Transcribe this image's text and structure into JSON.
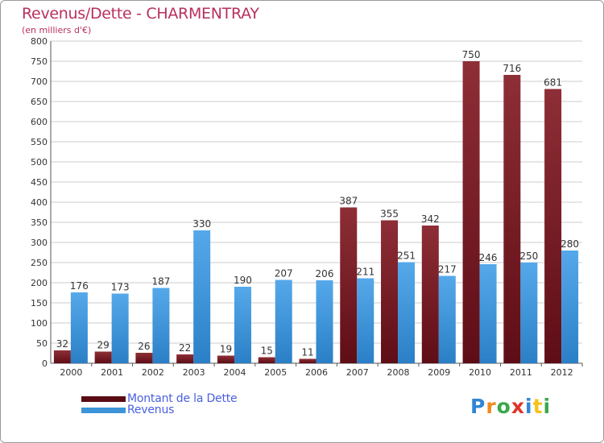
{
  "title": "Revenus/Dette - CHARMENTRAY",
  "subtitle": "(en milliers d'€)",
  "colors": {
    "debt": "#7a1d26",
    "revenue": "#3d94d8",
    "title": "#b8305e",
    "legend_text": "#4a5fe0",
    "grid": "#cccccc"
  },
  "chart_data": {
    "type": "bar",
    "title": "Revenus/Dette - CHARMENTRAY",
    "ylabel": "(en milliers d'€)",
    "xlabel": "",
    "categories": [
      "2000",
      "2001",
      "2002",
      "2003",
      "2004",
      "2005",
      "2006",
      "2007",
      "2008",
      "2009",
      "2010",
      "2011",
      "2012"
    ],
    "series": [
      {
        "name": "Montant de la Dette",
        "color": "#7a1d26",
        "values": [
          32,
          29,
          26,
          22,
          19,
          15,
          11,
          387,
          355,
          342,
          750,
          716,
          681
        ]
      },
      {
        "name": "Revenus",
        "color": "#3d94d8",
        "values": [
          176,
          173,
          187,
          330,
          190,
          207,
          206,
          211,
          251,
          217,
          246,
          250,
          280
        ]
      }
    ],
    "ylim": [
      0,
      800
    ],
    "yticks": [
      0,
      50,
      100,
      150,
      200,
      250,
      300,
      350,
      400,
      450,
      500,
      550,
      600,
      650,
      700,
      750,
      800
    ],
    "grid": true,
    "legend_position": "bottom-left"
  },
  "legend": [
    {
      "label": "Montant de la Dette",
      "color": "#7a1d26"
    },
    {
      "label": "Revenus",
      "color": "#3d94d8"
    }
  ],
  "logo": {
    "letters": [
      {
        "ch": "P",
        "color": "#2f86d4"
      },
      {
        "ch": "r",
        "color": "#f08a1c"
      },
      {
        "ch": "o",
        "color": "#3aa84a"
      },
      {
        "ch": "x",
        "color": "#e0352b"
      },
      {
        "ch": "i",
        "color": "#2f86d4"
      },
      {
        "ch": "t",
        "color": "#f5c21b"
      },
      {
        "ch": "i",
        "color": "#3aa84a"
      }
    ]
  }
}
